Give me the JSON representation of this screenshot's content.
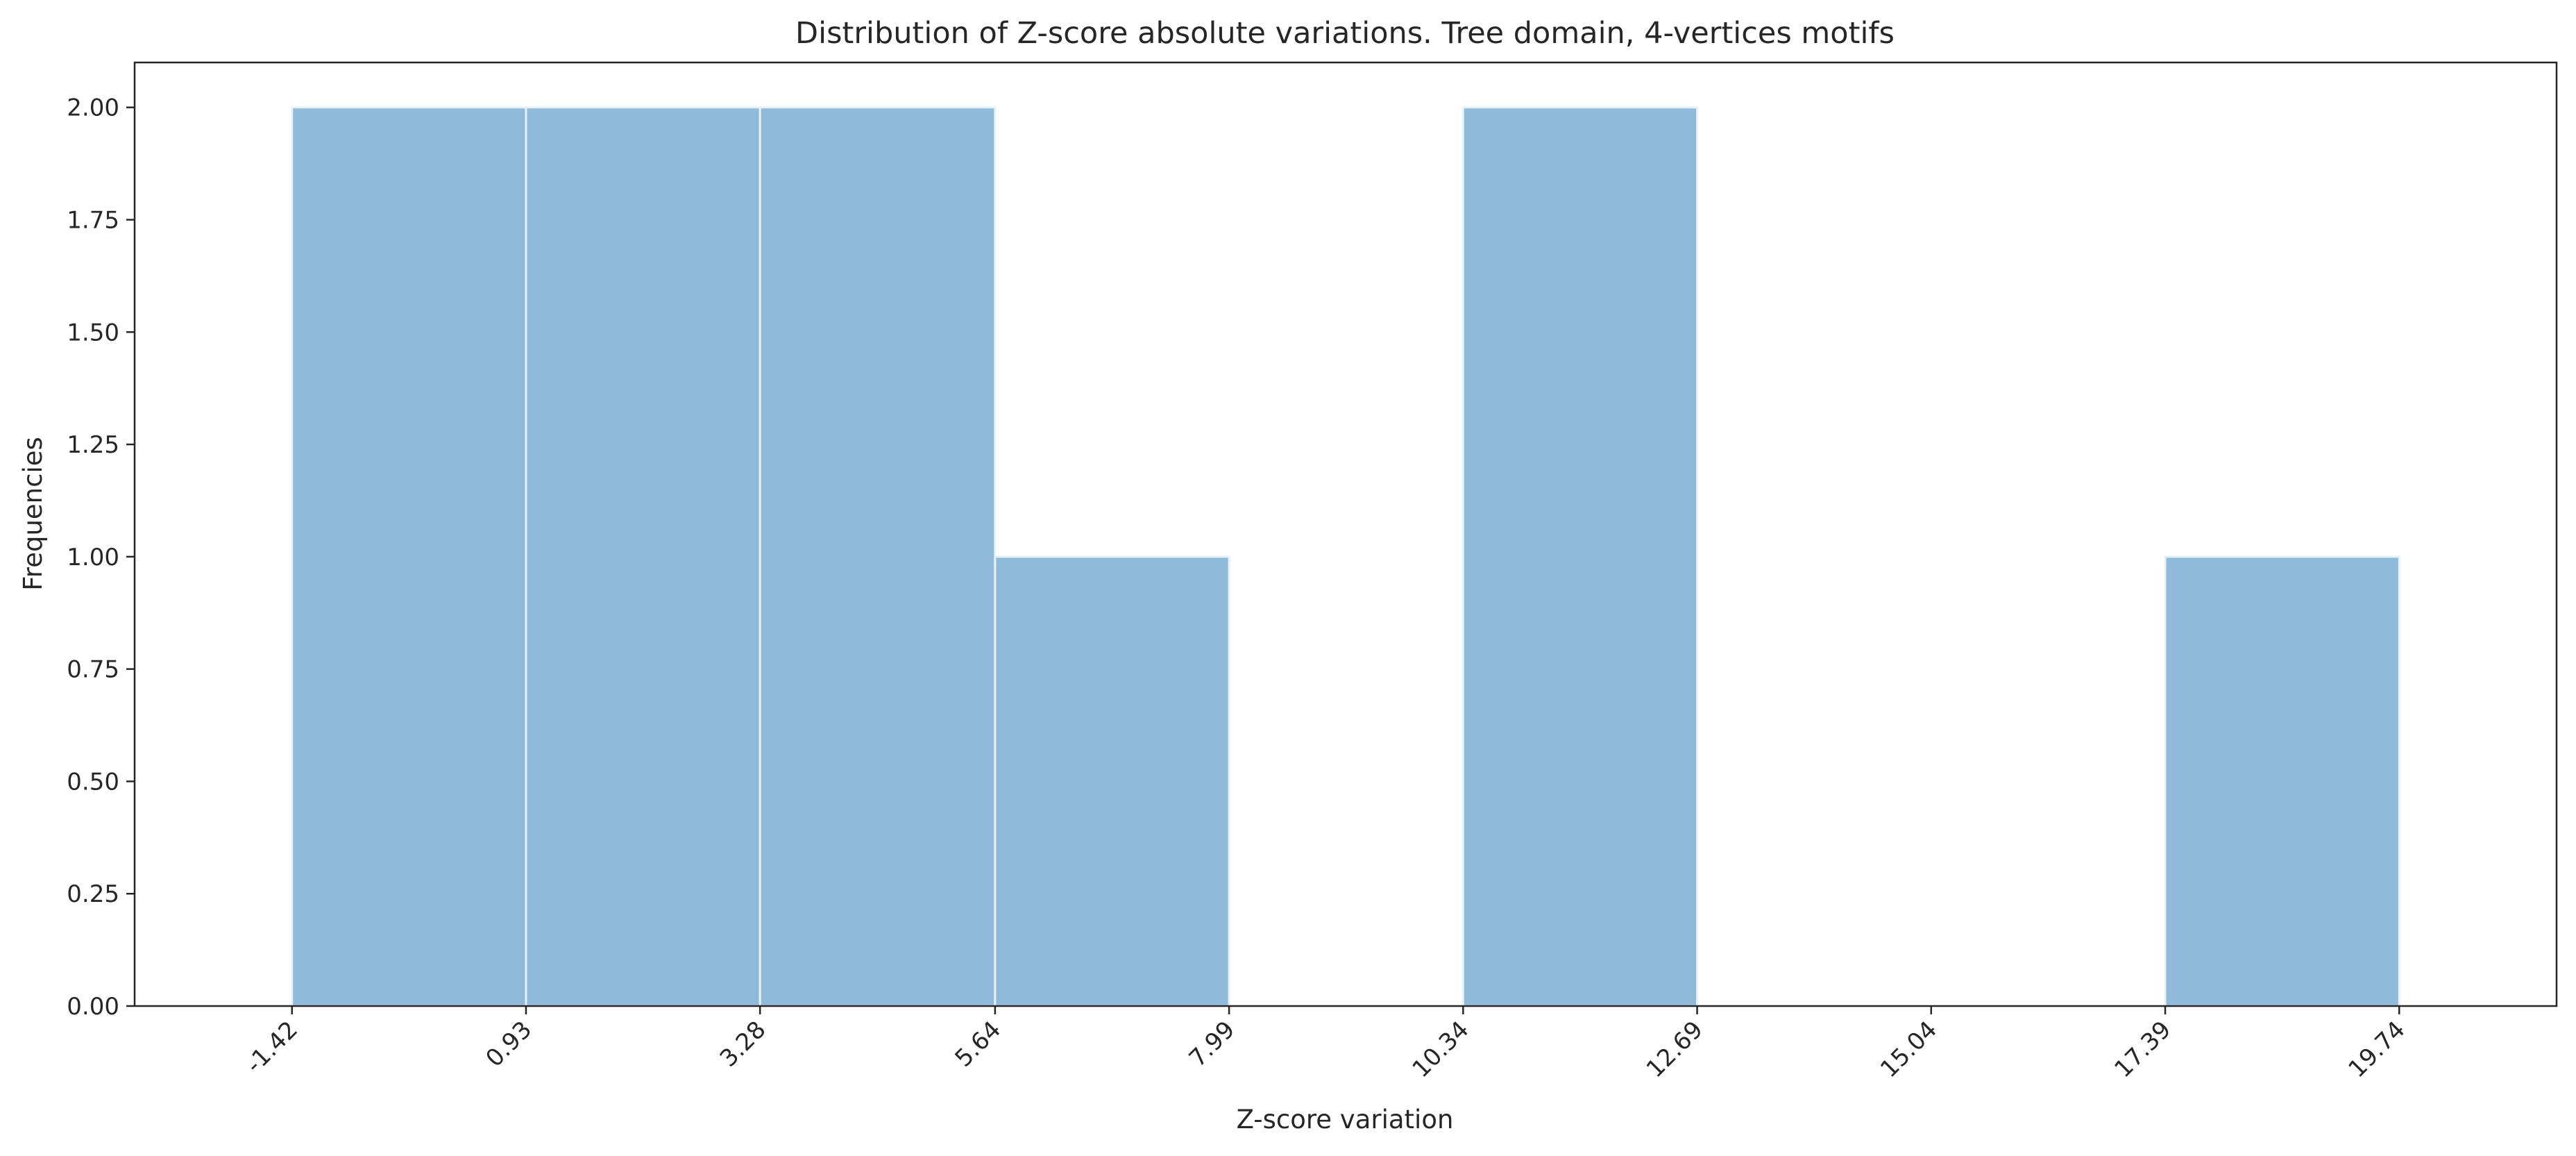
{
  "chart_data": {
    "type": "bar",
    "title": "Distribution of Z-score absolute variations. Tree domain, 4-vertices motifs",
    "xlabel": "Z-score variation",
    "ylabel": "Frequencies",
    "bins": [
      {
        "start": -1.42,
        "end": 0.93,
        "value": 2
      },
      {
        "start": 0.93,
        "end": 3.28,
        "value": 2
      },
      {
        "start": 3.28,
        "end": 5.64,
        "value": 2
      },
      {
        "start": 5.64,
        "end": 7.99,
        "value": 1
      },
      {
        "start": 7.99,
        "end": 10.34,
        "value": 0
      },
      {
        "start": 10.34,
        "end": 12.69,
        "value": 2
      },
      {
        "start": 12.69,
        "end": 15.04,
        "value": 0
      },
      {
        "start": 15.04,
        "end": 17.39,
        "value": 0
      },
      {
        "start": 17.39,
        "end": 19.74,
        "value": 1
      }
    ],
    "xticks": [
      "-1.42",
      "0.93",
      "3.28",
      "5.64",
      "7.99",
      "10.34",
      "12.69",
      "15.04",
      "17.39",
      "19.74"
    ],
    "xtick_values": [
      -1.42,
      0.93,
      3.28,
      5.64,
      7.99,
      10.34,
      12.69,
      15.04,
      17.39,
      19.74
    ],
    "yticks": [
      "0.00",
      "0.25",
      "0.50",
      "0.75",
      "1.00",
      "1.25",
      "1.50",
      "1.75",
      "2.00"
    ],
    "ytick_values": [
      0,
      0.25,
      0.5,
      0.75,
      1.0,
      1.25,
      1.5,
      1.75,
      2.0
    ],
    "xlim": [
      -3.0,
      21.32
    ],
    "ylim": [
      0,
      2.1
    ],
    "bar_color": "#8fbad9",
    "bar_edge_color": "#e8f1f8",
    "grid": false,
    "legend": "none"
  }
}
